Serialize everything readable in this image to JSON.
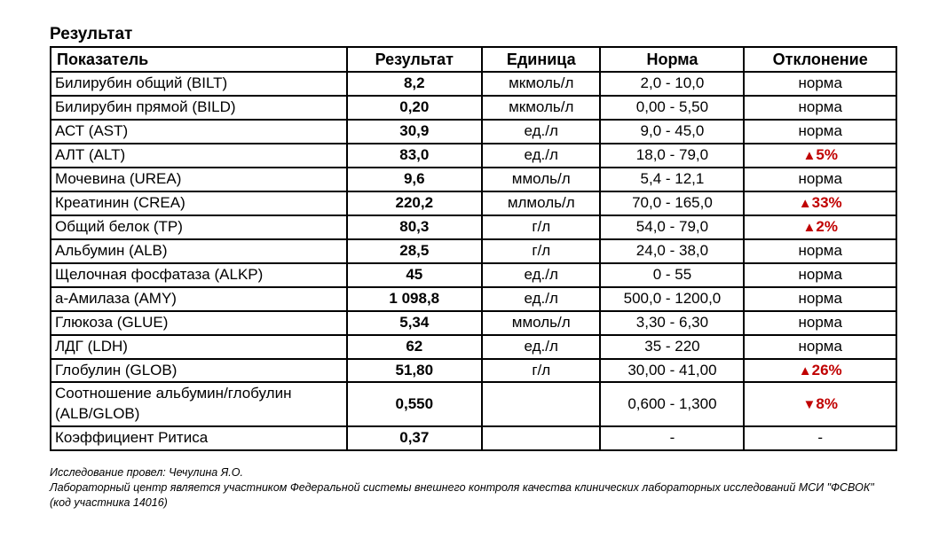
{
  "title": "Результат",
  "columns": [
    "Показатель",
    "Результат",
    "Единица",
    "Норма",
    "Отклонение"
  ],
  "col_widths": [
    "35%",
    "16%",
    "14%",
    "17%",
    "18%"
  ],
  "colors": {
    "text": "#000000",
    "border": "#000000",
    "alert": "#c00000",
    "background": "#ffffff"
  },
  "arrow_up": "▲",
  "arrow_down": "▼",
  "rows": [
    {
      "param": "Билирубин общий (BILT)",
      "result": "8,2",
      "unit": "мкмоль/л",
      "norm": "2,0 - 10,0",
      "dev": "норма",
      "alert": false,
      "dir": null
    },
    {
      "param": "Билирубин прямой (BILD)",
      "result": "0,20",
      "unit": "мкмоль/л",
      "norm": "0,00 - 5,50",
      "dev": "норма",
      "alert": false,
      "dir": null
    },
    {
      "param": "АСТ (AST)",
      "result": "30,9",
      "unit": "ед./л",
      "norm": "9,0 - 45,0",
      "dev": "норма",
      "alert": false,
      "dir": null
    },
    {
      "param": "АЛТ (ALT)",
      "result": "83,0",
      "unit": "ед./л",
      "norm": "18,0 - 79,0",
      "dev": "5%",
      "alert": true,
      "dir": "up"
    },
    {
      "param": "Мочевина (UREA)",
      "result": "9,6",
      "unit": "ммоль/л",
      "norm": "5,4 - 12,1",
      "dev": "норма",
      "alert": false,
      "dir": null
    },
    {
      "param": "Креатинин (CREA)",
      "result": "220,2",
      "unit": "млмоль/л",
      "norm": "70,0 - 165,0",
      "dev": "33%",
      "alert": true,
      "dir": "up"
    },
    {
      "param": "Общий белок (TP)",
      "result": "80,3",
      "unit": "г/л",
      "norm": "54,0 - 79,0",
      "dev": "2%",
      "alert": true,
      "dir": "up"
    },
    {
      "param": "Альбумин (ALB)",
      "result": "28,5",
      "unit": "г/л",
      "norm": "24,0 - 38,0",
      "dev": "норма",
      "alert": false,
      "dir": null
    },
    {
      "param": "Щелочная фосфатаза (ALKP)",
      "result": "45",
      "unit": "ед./л",
      "norm": "0 - 55",
      "dev": "норма",
      "alert": false,
      "dir": null
    },
    {
      "param": "а-Амилаза (AMY)",
      "result": "1 098,8",
      "unit": "ед./л",
      "norm": "500,0 - 1200,0",
      "dev": "норма",
      "alert": false,
      "dir": null
    },
    {
      "param": "Глюкоза (GLUE)",
      "result": "5,34",
      "unit": "ммоль/л",
      "norm": "3,30 - 6,30",
      "dev": "норма",
      "alert": false,
      "dir": null
    },
    {
      "param": "ЛДГ (LDH)",
      "result": "62",
      "unit": "ед./л",
      "norm": "35 - 220",
      "dev": "норма",
      "alert": false,
      "dir": null
    },
    {
      "param": "Глобулин (GLOB)",
      "result": "51,80",
      "unit": "г/л",
      "norm": "30,00 - 41,00",
      "dev": "26%",
      "alert": true,
      "dir": "up"
    },
    {
      "param": "Соотношение альбумин/глобулин (ALB/GLOB)",
      "result": "0,550",
      "unit": "",
      "norm": "0,600 - 1,300",
      "dev": "8%",
      "alert": true,
      "dir": "down"
    },
    {
      "param": "Коэффициент Ритиса",
      "result": "0,37",
      "unit": "",
      "norm": "-",
      "dev": "-",
      "alert": false,
      "dir": null
    }
  ],
  "footer": {
    "line1": "Исследование провел: Чечулина Я.О.",
    "line2": "Лабораторный центр является участником Федеральной системы внешнего контроля качества клинических лабораторных исследований МСИ \"ФСВОК\" (код участника 14016)"
  }
}
